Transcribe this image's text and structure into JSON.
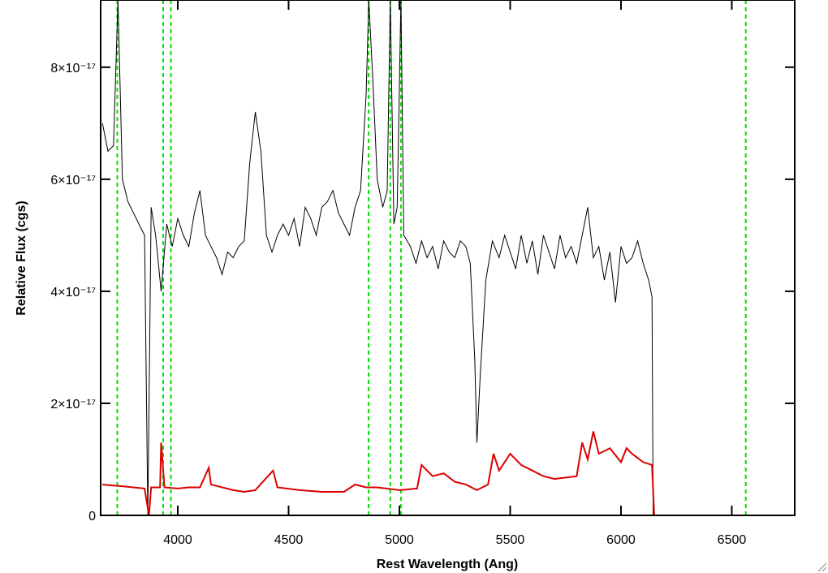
{
  "chart_data": {
    "type": "line",
    "xlabel": "Rest Wavelength (Ang)",
    "ylabel": "Relative Flux (cgs)",
    "xlim": [
      3652,
      6784
    ],
    "ylim": [
      0,
      9.2e-17
    ],
    "xticks": [
      4000,
      4500,
      5000,
      5500,
      6000,
      6500
    ],
    "yticks": [
      0,
      {
        "value": 2e-17,
        "label": "2×10⁻¹⁷"
      },
      {
        "value": 4e-17,
        "label": "4×10⁻¹⁷"
      },
      {
        "value": 6e-17,
        "label": "6×10⁻¹⁷"
      },
      {
        "value": 8e-17,
        "label": "8×10⁻¹⁷"
      }
    ],
    "vlines": [
      3727,
      3934,
      3969,
      4861,
      4959,
      5007,
      6563
    ],
    "vline_color": "#00e000",
    "series": [
      {
        "color": "#000000",
        "x": [
          3660,
          3685,
          3710,
          3730,
          3750,
          3775,
          3800,
          3825,
          3850,
          3865,
          3880,
          3900,
          3925,
          3950,
          3975,
          4000,
          4025,
          4050,
          4075,
          4100,
          4125,
          4150,
          4175,
          4200,
          4225,
          4250,
          4275,
          4300,
          4325,
          4350,
          4375,
          4400,
          4425,
          4450,
          4475,
          4500,
          4525,
          4550,
          4575,
          4600,
          4625,
          4650,
          4675,
          4700,
          4725,
          4750,
          4775,
          4800,
          4825,
          4850,
          4862,
          4880,
          4900,
          4925,
          4945,
          4959,
          4975,
          4990,
          5007,
          5020,
          5050,
          5075,
          5100,
          5125,
          5150,
          5175,
          5200,
          5225,
          5250,
          5275,
          5300,
          5320,
          5340,
          5350,
          5365,
          5390,
          5420,
          5450,
          5475,
          5500,
          5525,
          5550,
          5575,
          5600,
          5625,
          5650,
          5675,
          5700,
          5725,
          5750,
          5775,
          5800,
          5825,
          5850,
          5875,
          5900,
          5925,
          5950,
          5975,
          6000,
          6025,
          6050,
          6075,
          6100,
          6125,
          6140,
          6145
        ],
        "values": [
          7e-17,
          6.5e-17,
          6.6e-17,
          9.2e-17,
          6e-17,
          5.6e-17,
          5.4e-17,
          5.2e-17,
          5e-17,
          0,
          5.5e-17,
          5e-17,
          4e-17,
          5.2e-17,
          4.8e-17,
          5.3e-17,
          5e-17,
          4.8e-17,
          5.4e-17,
          5.8e-17,
          5e-17,
          4.8e-17,
          4.6e-17,
          4.3e-17,
          4.7e-17,
          4.6e-17,
          4.8e-17,
          4.9e-17,
          6.3e-17,
          7.2e-17,
          6.5e-17,
          5e-17,
          4.7e-17,
          5e-17,
          5.2e-17,
          5e-17,
          5.3e-17,
          4.8e-17,
          5.5e-17,
          5.3e-17,
          5e-17,
          5.5e-17,
          5.6e-17,
          5.8e-17,
          5.4e-17,
          5.2e-17,
          5e-17,
          5.5e-17,
          5.8e-17,
          7.5e-17,
          9.2e-17,
          7.8e-17,
          6e-17,
          5.5e-17,
          5.8e-17,
          9.2e-17,
          5.2e-17,
          5.5e-17,
          9.2e-17,
          5e-17,
          4.8e-17,
          4.5e-17,
          4.9e-17,
          4.6e-17,
          4.8e-17,
          4.4e-17,
          4.9e-17,
          4.7e-17,
          4.6e-17,
          4.9e-17,
          4.8e-17,
          4.5e-17,
          2.8e-17,
          1.3e-17,
          2.5e-17,
          4.2e-17,
          4.9e-17,
          4.6e-17,
          5e-17,
          4.7e-17,
          4.4e-17,
          5e-17,
          4.5e-17,
          4.9e-17,
          4.3e-17,
          5e-17,
          4.7e-17,
          4.4e-17,
          5e-17,
          4.6e-17,
          4.8e-17,
          4.5e-17,
          5e-17,
          5.5e-17,
          4.6e-17,
          4.8e-17,
          4.2e-17,
          4.7e-17,
          3.8e-17,
          4.8e-17,
          4.5e-17,
          4.6e-17,
          4.9e-17,
          4.5e-17,
          4.2e-17,
          3.9e-17,
          0
        ]
      },
      {
        "color": "#dd0000",
        "x": [
          3660,
          3750,
          3850,
          3870,
          3880,
          3920,
          3925,
          3940,
          4000,
          4050,
          4100,
          4140,
          4150,
          4250,
          4300,
          4350,
          4430,
          4450,
          4550,
          4650,
          4750,
          4800,
          4850,
          4900,
          5000,
          5080,
          5100,
          5150,
          5200,
          5250,
          5300,
          5350,
          5400,
          5425,
          5450,
          5500,
          5550,
          5600,
          5650,
          5700,
          5800,
          5825,
          5850,
          5875,
          5900,
          5950,
          6000,
          6025,
          6050,
          6100,
          6140,
          6150,
          6780
        ],
        "values": [
          5.5e-18,
          5.2e-18,
          4.8e-18,
          0,
          5e-18,
          5e-18,
          1.3e-17,
          5e-18,
          4.8e-18,
          5e-18,
          5e-18,
          8.5e-18,
          5.5e-18,
          4.5e-18,
          4.2e-18,
          4.5e-18,
          8e-18,
          5e-18,
          4.5e-18,
          4.2e-18,
          4.2e-18,
          5.5e-18,
          5e-18,
          5e-18,
          4.5e-18,
          4.8e-18,
          9e-18,
          7e-18,
          7.5e-18,
          6e-18,
          5.5e-18,
          4.5e-18,
          5.5e-18,
          1.1e-17,
          8e-18,
          1.1e-17,
          9e-18,
          8e-18,
          7e-18,
          6.5e-18,
          7e-18,
          1.3e-17,
          1e-17,
          1.5e-17,
          1.1e-17,
          1.2e-17,
          9.5e-18,
          1.2e-17,
          1.1e-17,
          9.5e-18,
          9e-18,
          0,
          0
        ]
      }
    ]
  }
}
